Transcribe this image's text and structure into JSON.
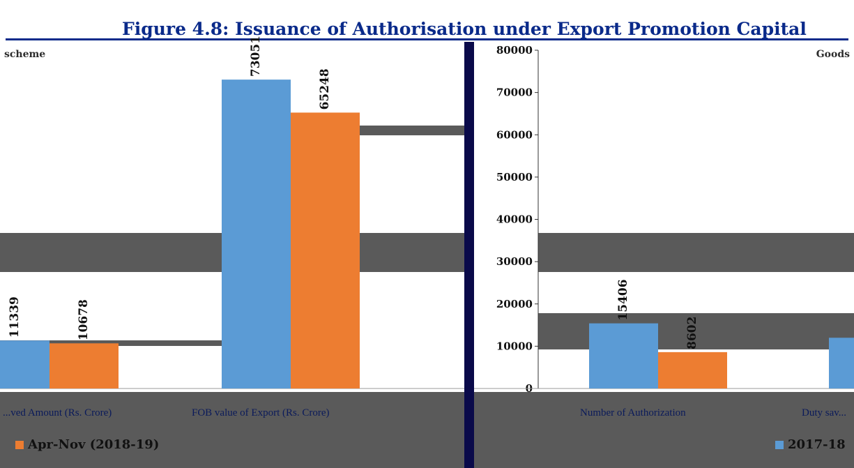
{
  "figure_title": "Figure 4.8: Issuance of Authorisation under Export Promotion Capital",
  "left_panel_label": "scheme",
  "right_panel_label": "Goods",
  "colors": {
    "series_1": "#5b9bd5",
    "series_2": "#ed7d31",
    "axis_band": "#5a5a5a"
  },
  "chart_data": [
    {
      "type": "bar",
      "title": "",
      "categories": [
        "...ved Amount (Rs. Crore)",
        "FOB value of Export (Rs. Crore)"
      ],
      "series": [
        {
          "name": "2017-18",
          "values": [
            11339,
            73051
          ]
        },
        {
          "name": "Apr-Nov (2018-19)",
          "values": [
            10678,
            65248
          ]
        }
      ],
      "ylim": [
        0,
        80000
      ],
      "legend_visible": "Apr-Nov (2018-19)"
    },
    {
      "type": "bar",
      "title": "",
      "categories": [
        "Number of Authorization",
        "Duty sav..."
      ],
      "series": [
        {
          "name": "2017-18",
          "values": [
            15406,
            12000
          ]
        },
        {
          "name": "Apr-Nov (2018-19)",
          "values": [
            8602,
            null
          ]
        }
      ],
      "ylim": [
        0,
        80000
      ],
      "yticks": [
        "0",
        "10000",
        "20000",
        "30000",
        "40000",
        "50000",
        "60000",
        "70000",
        "80000"
      ],
      "legend_visible": "2017-18"
    }
  ]
}
